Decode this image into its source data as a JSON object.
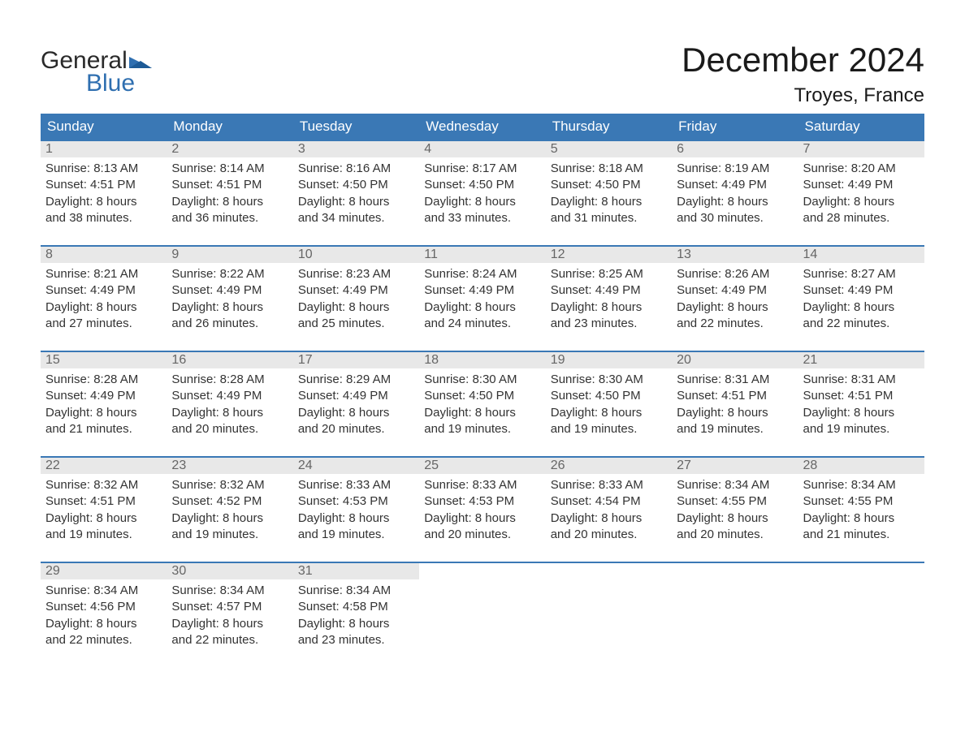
{
  "colors": {
    "header_bg": "#3a78b5",
    "header_text": "#ffffff",
    "daynum_bg": "#e8e8e8",
    "daynum_text": "#666666",
    "body_text": "#333333",
    "week_border": "#3a78b5",
    "logo_blue": "#2f6fb0",
    "logo_dark": "#2a2a2a",
    "page_bg": "#ffffff"
  },
  "logo": {
    "word1": "General",
    "word2": "Blue"
  },
  "title": "December 2024",
  "location": "Troyes, France",
  "weekdays": [
    "Sunday",
    "Monday",
    "Tuesday",
    "Wednesday",
    "Thursday",
    "Friday",
    "Saturday"
  ],
  "weeks": [
    [
      {
        "n": "1",
        "sr": "Sunrise: 8:13 AM",
        "ss": "Sunset: 4:51 PM",
        "d1": "Daylight: 8 hours",
        "d2": "and 38 minutes."
      },
      {
        "n": "2",
        "sr": "Sunrise: 8:14 AM",
        "ss": "Sunset: 4:51 PM",
        "d1": "Daylight: 8 hours",
        "d2": "and 36 minutes."
      },
      {
        "n": "3",
        "sr": "Sunrise: 8:16 AM",
        "ss": "Sunset: 4:50 PM",
        "d1": "Daylight: 8 hours",
        "d2": "and 34 minutes."
      },
      {
        "n": "4",
        "sr": "Sunrise: 8:17 AM",
        "ss": "Sunset: 4:50 PM",
        "d1": "Daylight: 8 hours",
        "d2": "and 33 minutes."
      },
      {
        "n": "5",
        "sr": "Sunrise: 8:18 AM",
        "ss": "Sunset: 4:50 PM",
        "d1": "Daylight: 8 hours",
        "d2": "and 31 minutes."
      },
      {
        "n": "6",
        "sr": "Sunrise: 8:19 AM",
        "ss": "Sunset: 4:49 PM",
        "d1": "Daylight: 8 hours",
        "d2": "and 30 minutes."
      },
      {
        "n": "7",
        "sr": "Sunrise: 8:20 AM",
        "ss": "Sunset: 4:49 PM",
        "d1": "Daylight: 8 hours",
        "d2": "and 28 minutes."
      }
    ],
    [
      {
        "n": "8",
        "sr": "Sunrise: 8:21 AM",
        "ss": "Sunset: 4:49 PM",
        "d1": "Daylight: 8 hours",
        "d2": "and 27 minutes."
      },
      {
        "n": "9",
        "sr": "Sunrise: 8:22 AM",
        "ss": "Sunset: 4:49 PM",
        "d1": "Daylight: 8 hours",
        "d2": "and 26 minutes."
      },
      {
        "n": "10",
        "sr": "Sunrise: 8:23 AM",
        "ss": "Sunset: 4:49 PM",
        "d1": "Daylight: 8 hours",
        "d2": "and 25 minutes."
      },
      {
        "n": "11",
        "sr": "Sunrise: 8:24 AM",
        "ss": "Sunset: 4:49 PM",
        "d1": "Daylight: 8 hours",
        "d2": "and 24 minutes."
      },
      {
        "n": "12",
        "sr": "Sunrise: 8:25 AM",
        "ss": "Sunset: 4:49 PM",
        "d1": "Daylight: 8 hours",
        "d2": "and 23 minutes."
      },
      {
        "n": "13",
        "sr": "Sunrise: 8:26 AM",
        "ss": "Sunset: 4:49 PM",
        "d1": "Daylight: 8 hours",
        "d2": "and 22 minutes."
      },
      {
        "n": "14",
        "sr": "Sunrise: 8:27 AM",
        "ss": "Sunset: 4:49 PM",
        "d1": "Daylight: 8 hours",
        "d2": "and 22 minutes."
      }
    ],
    [
      {
        "n": "15",
        "sr": "Sunrise: 8:28 AM",
        "ss": "Sunset: 4:49 PM",
        "d1": "Daylight: 8 hours",
        "d2": "and 21 minutes."
      },
      {
        "n": "16",
        "sr": "Sunrise: 8:28 AM",
        "ss": "Sunset: 4:49 PM",
        "d1": "Daylight: 8 hours",
        "d2": "and 20 minutes."
      },
      {
        "n": "17",
        "sr": "Sunrise: 8:29 AM",
        "ss": "Sunset: 4:49 PM",
        "d1": "Daylight: 8 hours",
        "d2": "and 20 minutes."
      },
      {
        "n": "18",
        "sr": "Sunrise: 8:30 AM",
        "ss": "Sunset: 4:50 PM",
        "d1": "Daylight: 8 hours",
        "d2": "and 19 minutes."
      },
      {
        "n": "19",
        "sr": "Sunrise: 8:30 AM",
        "ss": "Sunset: 4:50 PM",
        "d1": "Daylight: 8 hours",
        "d2": "and 19 minutes."
      },
      {
        "n": "20",
        "sr": "Sunrise: 8:31 AM",
        "ss": "Sunset: 4:51 PM",
        "d1": "Daylight: 8 hours",
        "d2": "and 19 minutes."
      },
      {
        "n": "21",
        "sr": "Sunrise: 8:31 AM",
        "ss": "Sunset: 4:51 PM",
        "d1": "Daylight: 8 hours",
        "d2": "and 19 minutes."
      }
    ],
    [
      {
        "n": "22",
        "sr": "Sunrise: 8:32 AM",
        "ss": "Sunset: 4:51 PM",
        "d1": "Daylight: 8 hours",
        "d2": "and 19 minutes."
      },
      {
        "n": "23",
        "sr": "Sunrise: 8:32 AM",
        "ss": "Sunset: 4:52 PM",
        "d1": "Daylight: 8 hours",
        "d2": "and 19 minutes."
      },
      {
        "n": "24",
        "sr": "Sunrise: 8:33 AM",
        "ss": "Sunset: 4:53 PM",
        "d1": "Daylight: 8 hours",
        "d2": "and 19 minutes."
      },
      {
        "n": "25",
        "sr": "Sunrise: 8:33 AM",
        "ss": "Sunset: 4:53 PM",
        "d1": "Daylight: 8 hours",
        "d2": "and 20 minutes."
      },
      {
        "n": "26",
        "sr": "Sunrise: 8:33 AM",
        "ss": "Sunset: 4:54 PM",
        "d1": "Daylight: 8 hours",
        "d2": "and 20 minutes."
      },
      {
        "n": "27",
        "sr": "Sunrise: 8:34 AM",
        "ss": "Sunset: 4:55 PM",
        "d1": "Daylight: 8 hours",
        "d2": "and 20 minutes."
      },
      {
        "n": "28",
        "sr": "Sunrise: 8:34 AM",
        "ss": "Sunset: 4:55 PM",
        "d1": "Daylight: 8 hours",
        "d2": "and 21 minutes."
      }
    ],
    [
      {
        "n": "29",
        "sr": "Sunrise: 8:34 AM",
        "ss": "Sunset: 4:56 PM",
        "d1": "Daylight: 8 hours",
        "d2": "and 22 minutes."
      },
      {
        "n": "30",
        "sr": "Sunrise: 8:34 AM",
        "ss": "Sunset: 4:57 PM",
        "d1": "Daylight: 8 hours",
        "d2": "and 22 minutes."
      },
      {
        "n": "31",
        "sr": "Sunrise: 8:34 AM",
        "ss": "Sunset: 4:58 PM",
        "d1": "Daylight: 8 hours",
        "d2": "and 23 minutes."
      },
      null,
      null,
      null,
      null
    ]
  ]
}
